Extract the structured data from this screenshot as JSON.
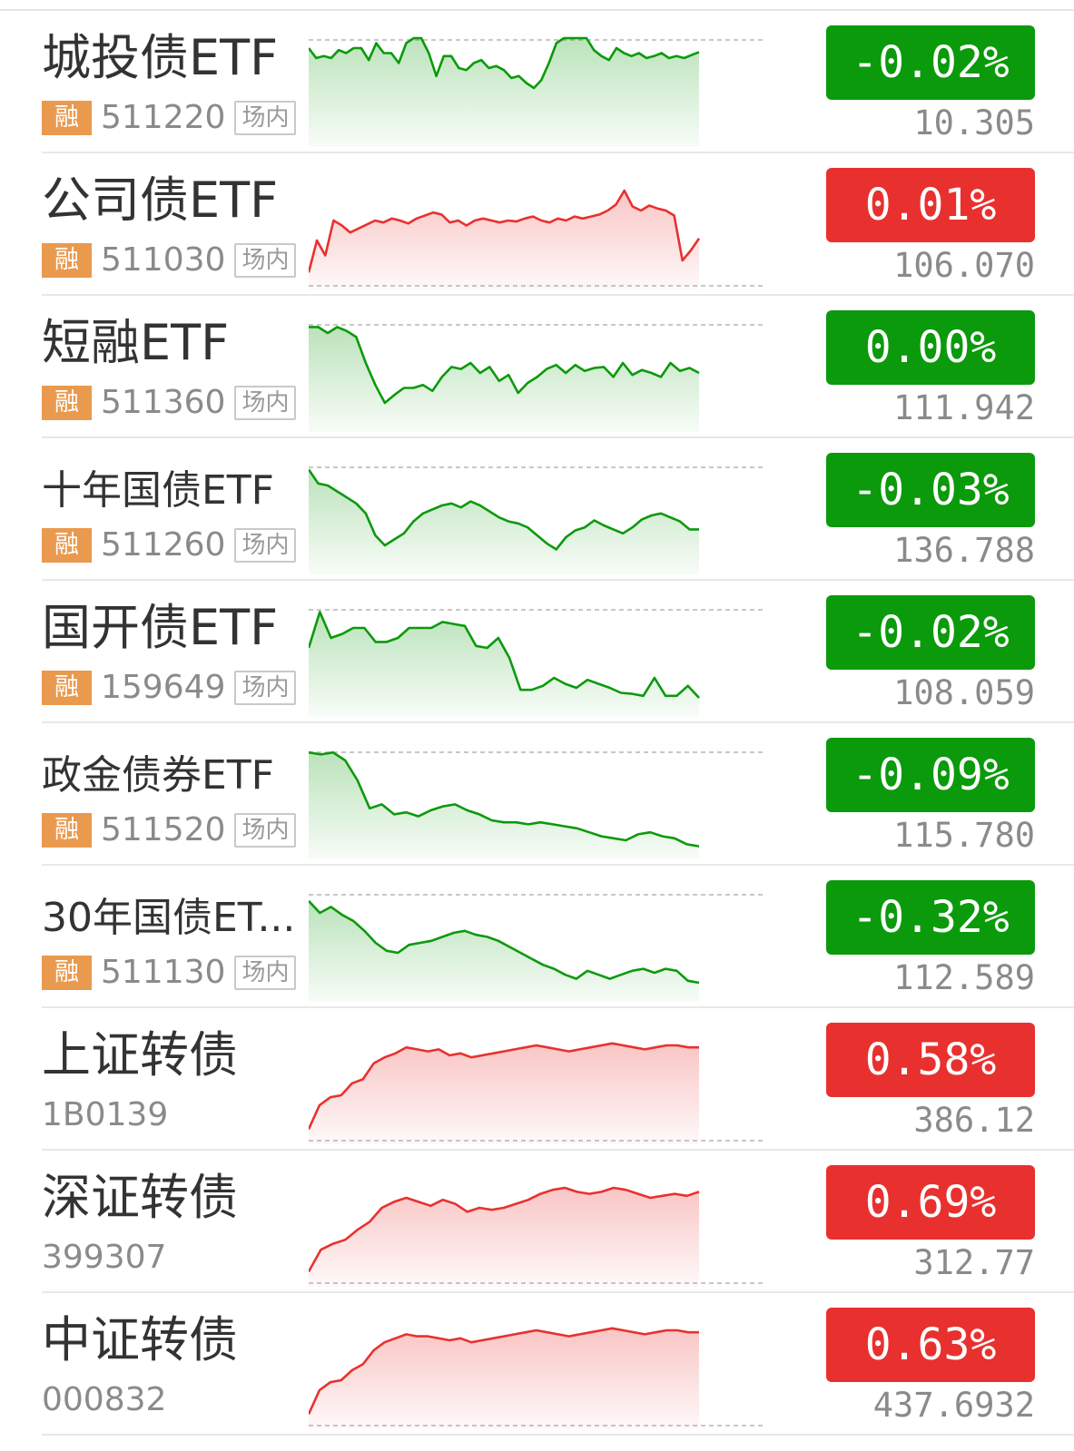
{
  "colors": {
    "up": "#e8312f",
    "down": "#0b9a0b",
    "tag": "#e99a4f"
  },
  "rows": [
    {
      "name": "城投债ETF",
      "tag": "融",
      "code": "511220",
      "market": "场内",
      "change": "-0.02%",
      "price": "10.305",
      "dir": "down",
      "spark": [
        90,
        80,
        82,
        80,
        88,
        85,
        90,
        90,
        78,
        95,
        85,
        85,
        75,
        95,
        100,
        100,
        85,
        62,
        82,
        82,
        70,
        68,
        75,
        78,
        70,
        72,
        68,
        60,
        62,
        55,
        50,
        58,
        75,
        95,
        100,
        100,
        100,
        100,
        88,
        82,
        78,
        90,
        85,
        82,
        85,
        80,
        82,
        85,
        80,
        82,
        80,
        83,
        86
      ]
    },
    {
      "name": "公司债ETF",
      "tag": "融",
      "code": "511030",
      "market": "场内",
      "change": "0.01%",
      "price": "106.070",
      "dir": "up",
      "spark": [
        8,
        40,
        25,
        60,
        55,
        48,
        52,
        56,
        60,
        58,
        62,
        60,
        57,
        62,
        65,
        68,
        66,
        58,
        60,
        55,
        60,
        62,
        60,
        58,
        60,
        59,
        62,
        64,
        60,
        58,
        62,
        60,
        64,
        62,
        64,
        66,
        70,
        76,
        90,
        74,
        70,
        75,
        72,
        70,
        65,
        20,
        30,
        42
      ]
    },
    {
      "name": "短融ETF",
      "tag": "融",
      "code": "511360",
      "market": "场内",
      "change": "0.00%",
      "price": "111.942",
      "dir": "down",
      "spark": [
        96,
        96,
        90,
        96,
        92,
        86,
        60,
        38,
        20,
        28,
        35,
        35,
        38,
        32,
        46,
        56,
        54,
        60,
        50,
        56,
        42,
        48,
        30,
        40,
        46,
        54,
        58,
        50,
        58,
        52,
        55,
        56,
        46,
        60,
        48,
        53,
        50,
        46,
        60,
        52,
        55,
        50
      ]
    },
    {
      "name": "十年国债ETF",
      "tag": "融",
      "code": "511260",
      "market": "场内",
      "change": "-0.03%",
      "price": "136.788",
      "dir": "down",
      "spark": [
        96,
        82,
        80,
        74,
        68,
        62,
        52,
        30,
        20,
        26,
        32,
        44,
        52,
        56,
        60,
        62,
        58,
        64,
        60,
        54,
        48,
        44,
        42,
        38,
        30,
        22,
        16,
        28,
        35,
        38,
        45,
        40,
        36,
        32,
        38,
        46,
        50,
        52,
        48,
        44,
        36,
        36
      ]
    },
    {
      "name": "国开债ETF",
      "tag": "融",
      "code": "159649",
      "market": "场内",
      "change": "-0.02%",
      "price": "108.059",
      "dir": "down",
      "spark": [
        60,
        96,
        70,
        74,
        80,
        80,
        66,
        66,
        70,
        80,
        80,
        80,
        86,
        84,
        82,
        62,
        60,
        70,
        50,
        18,
        18,
        22,
        30,
        24,
        20,
        28,
        24,
        20,
        15,
        14,
        12,
        30,
        12,
        12,
        22,
        10
      ]
    },
    {
      "name": "政金债券ETF",
      "tag": "融",
      "code": "511520",
      "market": "场内",
      "change": "-0.09%",
      "price": "115.780",
      "dir": "down",
      "spark": [
        98,
        96,
        98,
        90,
        70,
        42,
        46,
        36,
        38,
        34,
        40,
        44,
        46,
        40,
        36,
        30,
        28,
        28,
        26,
        28,
        26,
        24,
        22,
        18,
        14,
        12,
        10,
        16,
        18,
        14,
        12,
        6,
        4
      ]
    },
    {
      "name": "30年国债ET...",
      "tag": "融",
      "code": "511130",
      "market": "场内",
      "change": "-0.32%",
      "price": "112.589",
      "dir": "down",
      "spark": [
        92,
        80,
        86,
        78,
        72,
        62,
        50,
        42,
        40,
        48,
        50,
        52,
        56,
        60,
        62,
        58,
        56,
        52,
        46,
        40,
        34,
        28,
        24,
        18,
        14,
        22,
        18,
        14,
        18,
        22,
        24,
        20,
        24,
        22,
        12,
        10
      ]
    },
    {
      "name": "上证转债",
      "tag": "",
      "code": "1B0139",
      "market": "",
      "change": "0.58%",
      "price": "386.12",
      "dir": "up",
      "spark": [
        6,
        30,
        38,
        40,
        52,
        56,
        72,
        78,
        82,
        88,
        86,
        84,
        86,
        80,
        82,
        78,
        80,
        82,
        84,
        86,
        88,
        90,
        88,
        86,
        84,
        86,
        88,
        90,
        92,
        90,
        88,
        86,
        88,
        90,
        90,
        88,
        88
      ]
    },
    {
      "name": "深证转债",
      "tag": "",
      "code": "399307",
      "market": "",
      "change": "0.69%",
      "price": "312.77",
      "dir": "up",
      "spark": [
        6,
        28,
        34,
        38,
        48,
        56,
        70,
        76,
        80,
        76,
        72,
        78,
        74,
        66,
        70,
        68,
        70,
        74,
        78,
        84,
        88,
        90,
        86,
        84,
        86,
        90,
        88,
        84,
        80,
        82,
        84,
        82,
        86
      ]
    },
    {
      "name": "中证转债",
      "tag": "",
      "code": "000832",
      "market": "",
      "change": "0.63%",
      "price": "437.6932",
      "dir": "up",
      "spark": [
        6,
        30,
        38,
        40,
        50,
        56,
        70,
        78,
        82,
        86,
        84,
        84,
        82,
        80,
        82,
        78,
        80,
        82,
        84,
        86,
        88,
        90,
        88,
        86,
        84,
        86,
        88,
        90,
        92,
        90,
        88,
        86,
        88,
        90,
        90,
        88,
        88
      ]
    }
  ]
}
